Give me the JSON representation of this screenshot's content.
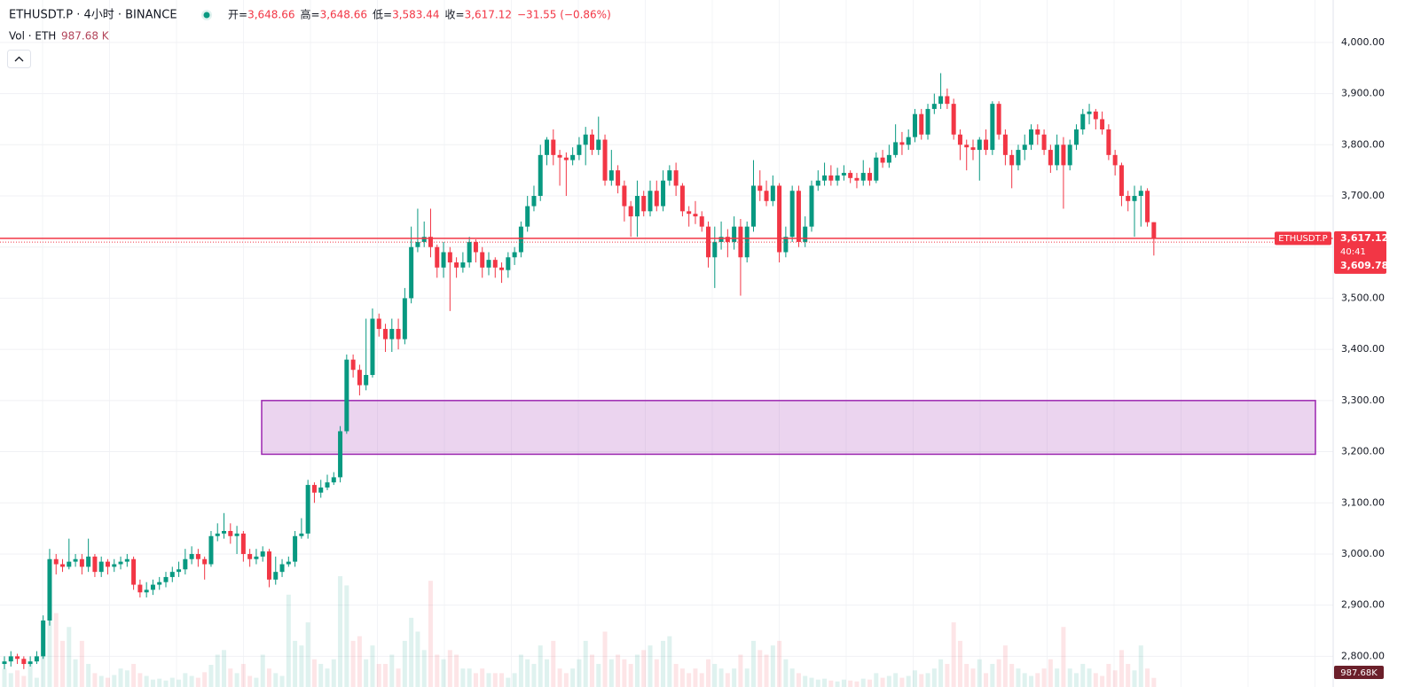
{
  "header": {
    "symbol": "ETHUSDT.P · 4小时 · BINANCE",
    "ohlc": [
      {
        "label": "开=",
        "value": "3,648.66"
      },
      {
        "label": "高=",
        "value": "3,648.66"
      },
      {
        "label": "低=",
        "value": "3,583.44"
      },
      {
        "label": "收=",
        "value": "3,617.12"
      }
    ],
    "change": "−31.55 (−0.86%)",
    "vol_label": "Vol · ETH",
    "vol_value": "987.68 K"
  },
  "chart_data": {
    "type": "candlestick",
    "up_color": "#089981",
    "down_color": "#f23645",
    "grid": true,
    "ylim": [
      2740,
      4083
    ],
    "yticks": [
      {
        "value": 2800,
        "label": "2,800.00"
      },
      {
        "value": 2900,
        "label": "2,900.00"
      },
      {
        "value": 3000,
        "label": "3,000.00"
      },
      {
        "value": 3100,
        "label": "3,100.00"
      },
      {
        "value": 3200,
        "label": "3,200.00"
      },
      {
        "value": 3300,
        "label": "3,300.00"
      },
      {
        "value": 3400,
        "label": "3,400.00"
      },
      {
        "value": 3500,
        "label": "3,500.00"
      },
      {
        "value": 3600,
        "label": "3,600.00"
      },
      {
        "value": 3700,
        "label": "3,700.00"
      },
      {
        "value": 3800,
        "label": "3,800.00"
      },
      {
        "value": 3900,
        "label": "3,900.00"
      },
      {
        "value": 4000,
        "label": "4,000.00"
      }
    ],
    "open": [
      2785,
      2790,
      2800,
      2795,
      2785,
      2790,
      2800,
      2870,
      2990,
      2980,
      2975,
      2985,
      2990,
      2975,
      2995,
      2965,
      2985,
      2975,
      2980,
      2985,
      2990,
      2940,
      2925,
      2930,
      2940,
      2945,
      2955,
      2965,
      2970,
      2990,
      3000,
      2990,
      2980,
      3035,
      3040,
      3045,
      3035,
      3040,
      3000,
      2990,
      2995,
      3005,
      2950,
      2965,
      2980,
      2985,
      3035,
      3040,
      3135,
      3120,
      3130,
      3140,
      3150,
      3240,
      3380,
      3360,
      3330,
      3350,
      3460,
      3440,
      3420,
      3440,
      3420,
      3500,
      3600,
      3610,
      3620,
      3600,
      3560,
      3590,
      3570,
      3560,
      3570,
      3610,
      3590,
      3560,
      3575,
      3560,
      3555,
      3580,
      3590,
      3640,
      3680,
      3700,
      3780,
      3810,
      3780,
      3775,
      3770,
      3780,
      3800,
      3820,
      3790,
      3810,
      3730,
      3750,
      3720,
      3680,
      3660,
      3700,
      3670,
      3710,
      3680,
      3730,
      3750,
      3720,
      3670,
      3665,
      3660,
      3640,
      3580,
      3610,
      3620,
      3610,
      3640,
      3580,
      3640,
      3720,
      3710,
      3690,
      3720,
      3590,
      3620,
      3710,
      3610,
      3640,
      3720,
      3730,
      3740,
      3730,
      3740,
      3745,
      3735,
      3730,
      3745,
      3730,
      3775,
      3765,
      3780,
      3805,
      3800,
      3815,
      3860,
      3820,
      3870,
      3880,
      3895,
      3880,
      3820,
      3800,
      3795,
      3790,
      3810,
      3790,
      3880,
      3820,
      3780,
      3760,
      3790,
      3800,
      3830,
      3820,
      3790,
      3760,
      3800,
      3760,
      3800,
      3830,
      3860,
      3865,
      3850,
      3830,
      3780,
      3760,
      3700,
      3690,
      3700,
      3710,
      3648.66
    ],
    "high": [
      2800,
      2810,
      2805,
      2800,
      2800,
      2810,
      2880,
      3010,
      3000,
      2990,
      3030,
      3000,
      3000,
      3030,
      3000,
      2995,
      2990,
      2990,
      2995,
      3000,
      2995,
      2950,
      2945,
      2950,
      2955,
      2965,
      2975,
      2985,
      3010,
      3015,
      3010,
      2995,
      3045,
      3060,
      3080,
      3060,
      3055,
      3045,
      3010,
      3010,
      3015,
      3010,
      2995,
      2990,
      2995,
      3045,
      3070,
      3145,
      3140,
      3145,
      3155,
      3160,
      3250,
      3390,
      3390,
      3370,
      3460,
      3480,
      3470,
      3450,
      3460,
      3460,
      3520,
      3640,
      3675,
      3650,
      3675,
      3605,
      3610,
      3600,
      3580,
      3590,
      3620,
      3615,
      3600,
      3590,
      3580,
      3570,
      3590,
      3600,
      3650,
      3700,
      3720,
      3800,
      3815,
      3830,
      3790,
      3785,
      3795,
      3815,
      3835,
      3830,
      3855,
      3820,
      3790,
      3760,
      3730,
      3690,
      3730,
      3710,
      3730,
      3730,
      3750,
      3760,
      3765,
      3725,
      3680,
      3690,
      3670,
      3650,
      3640,
      3650,
      3635,
      3660,
      3655,
      3650,
      3770,
      3750,
      3730,
      3740,
      3725,
      3640,
      3720,
      3720,
      3660,
      3730,
      3750,
      3765,
      3760,
      3755,
      3760,
      3750,
      3745,
      3770,
      3755,
      3785,
      3790,
      3800,
      3840,
      3825,
      3830,
      3870,
      3870,
      3880,
      3900,
      3940,
      3910,
      3890,
      3830,
      3810,
      3810,
      3815,
      3830,
      3885,
      3885,
      3830,
      3790,
      3800,
      3820,
      3840,
      3840,
      3830,
      3800,
      3820,
      3815,
      3810,
      3840,
      3870,
      3880,
      3870,
      3865,
      3840,
      3790,
      3765,
      3710,
      3720,
      3720,
      3715,
      3648.66
    ],
    "low": [
      2775,
      2780,
      2785,
      2775,
      2780,
      2785,
      2795,
      2860,
      2960,
      2965,
      2970,
      2975,
      2960,
      2965,
      2955,
      2955,
      2960,
      2965,
      2970,
      2975,
      2930,
      2915,
      2915,
      2920,
      2930,
      2935,
      2945,
      2955,
      2960,
      2980,
      2975,
      2950,
      2975,
      3025,
      3030,
      3020,
      3000,
      2985,
      2975,
      2980,
      2985,
      2935,
      2940,
      2955,
      2975,
      2975,
      3030,
      3030,
      3100,
      3110,
      3125,
      3135,
      3140,
      3235,
      3345,
      3310,
      3320,
      3345,
      3425,
      3395,
      3395,
      3400,
      3410,
      3490,
      3590,
      3600,
      3580,
      3540,
      3540,
      3475,
      3540,
      3550,
      3560,
      3570,
      3540,
      3545,
      3540,
      3530,
      3540,
      3565,
      3580,
      3630,
      3670,
      3690,
      3760,
      3760,
      3720,
      3700,
      3760,
      3770,
      3760,
      3780,
      3780,
      3720,
      3720,
      3705,
      3650,
      3620,
      3620,
      3660,
      3660,
      3670,
      3670,
      3720,
      3700,
      3660,
      3640,
      3645,
      3630,
      3560,
      3520,
      3595,
      3580,
      3595,
      3505,
      3570,
      3630,
      3690,
      3680,
      3680,
      3570,
      3580,
      3610,
      3600,
      3600,
      3630,
      3710,
      3720,
      3720,
      3720,
      3730,
      3725,
      3715,
      3720,
      3720,
      3725,
      3755,
      3755,
      3775,
      3780,
      3790,
      3805,
      3810,
      3810,
      3860,
      3870,
      3870,
      3810,
      3770,
      3750,
      3770,
      3730,
      3780,
      3780,
      3810,
      3760,
      3715,
      3750,
      3770,
      3790,
      3800,
      3780,
      3745,
      3750,
      3675,
      3750,
      3790,
      3820,
      3840,
      3830,
      3820,
      3770,
      3740,
      3680,
      3670,
      3620,
      3640,
      3640,
      3583.44
    ],
    "close": [
      2790,
      2800,
      2795,
      2785,
      2790,
      2800,
      2870,
      2990,
      2980,
      2975,
      2985,
      2990,
      2975,
      2995,
      2965,
      2985,
      2975,
      2980,
      2985,
      2990,
      2940,
      2925,
      2930,
      2940,
      2945,
      2955,
      2965,
      2970,
      2990,
      3000,
      2990,
      2980,
      3035,
      3040,
      3045,
      3035,
      3040,
      3000,
      2990,
      2995,
      3005,
      2950,
      2965,
      2980,
      2985,
      3035,
      3040,
      3135,
      3120,
      3130,
      3140,
      3150,
      3240,
      3380,
      3360,
      3330,
      3350,
      3460,
      3440,
      3420,
      3440,
      3420,
      3500,
      3600,
      3610,
      3620,
      3600,
      3560,
      3590,
      3570,
      3560,
      3570,
      3610,
      3590,
      3560,
      3575,
      3560,
      3555,
      3580,
      3590,
      3640,
      3680,
      3700,
      3780,
      3810,
      3780,
      3775,
      3770,
      3780,
      3800,
      3820,
      3790,
      3810,
      3730,
      3750,
      3720,
      3680,
      3660,
      3700,
      3670,
      3710,
      3680,
      3730,
      3750,
      3720,
      3670,
      3665,
      3660,
      3640,
      3580,
      3610,
      3620,
      3610,
      3640,
      3580,
      3640,
      3720,
      3710,
      3690,
      3720,
      3590,
      3620,
      3710,
      3610,
      3640,
      3720,
      3730,
      3740,
      3730,
      3740,
      3745,
      3735,
      3730,
      3745,
      3730,
      3775,
      3765,
      3780,
      3805,
      3800,
      3815,
      3860,
      3820,
      3870,
      3880,
      3895,
      3880,
      3820,
      3800,
      3795,
      3790,
      3810,
      3790,
      3880,
      3820,
      3780,
      3760,
      3790,
      3800,
      3830,
      3820,
      3790,
      3760,
      3800,
      3760,
      3800,
      3830,
      3860,
      3865,
      3850,
      3830,
      3780,
      3760,
      3700,
      3690,
      3700,
      3710,
      3648.66,
      3617.12
    ],
    "volume": [
      2000,
      1500,
      1800,
      1200,
      2500,
      1000,
      7000,
      11000,
      8000,
      5000,
      6500,
      3000,
      5000,
      2500,
      1500,
      1200,
      1000,
      1300,
      2000,
      1800,
      2500,
      1500,
      1200,
      800,
      900,
      700,
      1000,
      800,
      1500,
      1200,
      1000,
      1600,
      2400,
      3500,
      4000,
      2000,
      1500,
      2500,
      1200,
      1000,
      3500,
      2000,
      1500,
      1200,
      10000,
      5000,
      4500,
      7000,
      3000,
      2500,
      2000,
      3000,
      12000,
      11000,
      5000,
      5500,
      3000,
      4500,
      2500,
      2500,
      3500,
      2000,
      5000,
      7500,
      6000,
      4000,
      11500,
      3500,
      3000,
      4000,
      3500,
      2000,
      2000,
      1500,
      2000,
      1500,
      1500,
      1500,
      1000,
      1500,
      3500,
      3000,
      2500,
      4500,
      3000,
      5000,
      2000,
      1500,
      2000,
      3000,
      5000,
      3500,
      2500,
      6000,
      3000,
      3500,
      3000,
      2500,
      3500,
      4000,
      4500,
      3000,
      5000,
      5500,
      2500,
      2000,
      1500,
      2000,
      1500,
      3000,
      2500,
      2000,
      1500,
      2000,
      3500,
      2000,
      5000,
      4000,
      3500,
      4500,
      5000,
      3000,
      2000,
      1500,
      1200,
      1000,
      800,
      900,
      700,
      600,
      800,
      700,
      600,
      900,
      800,
      1500,
      1000,
      1200,
      1500,
      1000,
      1200,
      1800,
      1400,
      1500,
      2000,
      3000,
      2500,
      7000,
      5000,
      2500,
      2000,
      3000,
      1500,
      2500,
      3000,
      4500,
      2500,
      2000,
      1500,
      1200,
      1500,
      2000,
      3000,
      2000,
      6500,
      2000,
      1500,
      2500,
      2000,
      1500,
      1200,
      2500,
      1800,
      4000,
      2500,
      1800,
      4500,
      2000,
      987.68
    ],
    "volume_label": "987.68K",
    "last_price": {
      "name": "ETHUSDT.P",
      "value": 3617.12,
      "label": "3,617.12",
      "countdown": "40:41"
    },
    "mark_price": {
      "value": 3609.78,
      "label": "3,609.78"
    },
    "zone": {
      "top": 3300,
      "bottom": 3195,
      "color": "#9c27b0"
    }
  }
}
